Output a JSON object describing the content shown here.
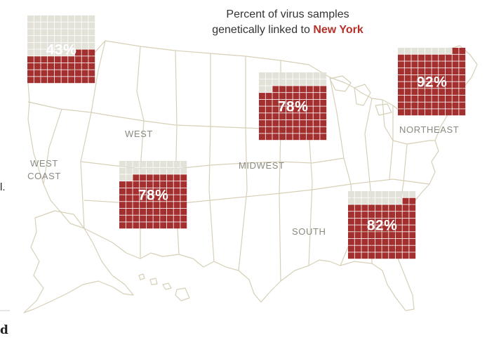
{
  "title": {
    "line1": "Percent of virus samples",
    "line2_prefix": "genetically linked to ",
    "highlight": "New York"
  },
  "colors": {
    "filled": "#a3302f",
    "empty": "#e3e2d9",
    "grid_line": "#ffffff",
    "map_line": "#d7d0b8",
    "label": "#8a8a80",
    "highlight": "#b5312c"
  },
  "regions": {
    "west": "WEST",
    "west_coast_1": "WEST",
    "west_coast_2": "COAST",
    "midwest": "MIDWEST",
    "south": "SOUTH",
    "northeast": "NORTHEAST"
  },
  "waffles": [
    {
      "id": "west-coast",
      "percent": 43,
      "label": "43%"
    },
    {
      "id": "midwest",
      "percent": 78,
      "label": "78%"
    },
    {
      "id": "west",
      "percent": 78,
      "label": "78%"
    },
    {
      "id": "northeast",
      "percent": 92,
      "label": "92%"
    },
    {
      "id": "south",
      "percent": 82,
      "label": "82%"
    }
  ],
  "edge_text": {
    "left_mid": "l.",
    "left_bottom": "d"
  }
}
